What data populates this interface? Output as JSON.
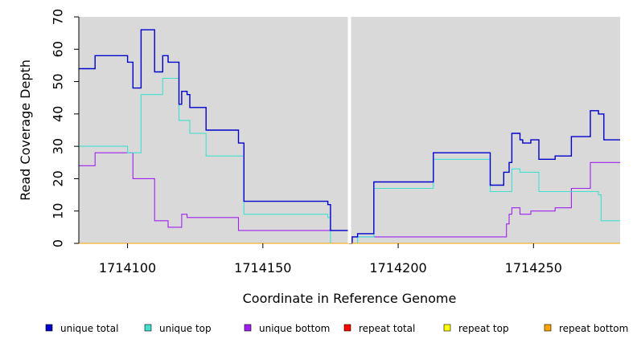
{
  "chart_data": {
    "type": "line",
    "title": "",
    "xlabel": "Coordinate in Reference Genome",
    "ylabel": "Read Coverage Depth",
    "xlim": [
      1714082,
      1714282
    ],
    "ylim": [
      0,
      70
    ],
    "x_ticks": [
      1714100,
      1714150,
      1714200,
      1714250
    ],
    "x_tick_labels": [
      "1714100",
      "1714150",
      "1714200",
      "1714250"
    ],
    "y_ticks": [
      0,
      10,
      20,
      30,
      40,
      50,
      60,
      70
    ],
    "y_tick_labels": [
      "0",
      "10",
      "20",
      "30",
      "40",
      "50",
      "60",
      "70"
    ],
    "background": "#d9d9d9",
    "marker_x": 1714182,
    "marker_color": "#ffffff",
    "legend_position": "bottom",
    "series": [
      {
        "name": "unique total",
        "color": "#0000cd",
        "step": true,
        "x": [
          1714082,
          1714088,
          1714100,
          1714102,
          1714105,
          1714110,
          1714113,
          1714115,
          1714119,
          1714120,
          1714122,
          1714123,
          1714129,
          1714141,
          1714143,
          1714174,
          1714175,
          1714182,
          1714183,
          1714185,
          1714191,
          1714213,
          1714234,
          1714239,
          1714241,
          1714242,
          1714245,
          1714246,
          1714249,
          1714252,
          1714258,
          1714264,
          1714271,
          1714274,
          1714276
        ],
        "y": [
          54,
          58,
          56,
          48,
          66,
          53,
          58,
          56,
          43,
          47,
          46,
          42,
          35,
          31,
          13,
          12,
          4,
          0,
          2,
          3,
          19,
          28,
          18,
          22,
          25,
          34,
          32,
          31,
          32,
          26,
          27,
          33,
          41,
          40,
          32
        ]
      },
      {
        "name": "unique top",
        "color": "#40e0d0",
        "step": true,
        "x": [
          1714082,
          1714100,
          1714105,
          1714113,
          1714119,
          1714123,
          1714129,
          1714143,
          1714174,
          1714175,
          1714185,
          1714191,
          1714213,
          1714234,
          1714242,
          1714245,
          1714252,
          1714264,
          1714274,
          1714275
        ],
        "y": [
          30,
          28,
          46,
          51,
          38,
          34,
          27,
          9,
          8,
          0,
          2,
          17,
          26,
          16,
          23,
          22,
          16,
          16,
          15,
          7
        ]
      },
      {
        "name": "unique bottom",
        "color": "#a020f0",
        "step": true,
        "x": [
          1714082,
          1714088,
          1714102,
          1714110,
          1714115,
          1714120,
          1714122,
          1714141,
          1714175,
          1714182,
          1714183,
          1714239,
          1714240,
          1714241,
          1714242,
          1714245,
          1714249,
          1714258,
          1714264,
          1714271
        ],
        "y": [
          24,
          28,
          20,
          7,
          5,
          9,
          8,
          4,
          4,
          0,
          2,
          2,
          6,
          9,
          11,
          9,
          10,
          11,
          17,
          25
        ]
      },
      {
        "name": "repeat total",
        "color": "#ff0000",
        "step": true,
        "x": [
          1714082,
          1714282
        ],
        "y": [
          0,
          0
        ]
      },
      {
        "name": "repeat top",
        "color": "#ffff00",
        "step": true,
        "x": [
          1714082,
          1714282
        ],
        "y": [
          0,
          0
        ]
      },
      {
        "name": "repeat bottom",
        "color": "#ffa500",
        "step": true,
        "x": [
          1714082,
          1714282
        ],
        "y": [
          0,
          0
        ]
      }
    ]
  }
}
